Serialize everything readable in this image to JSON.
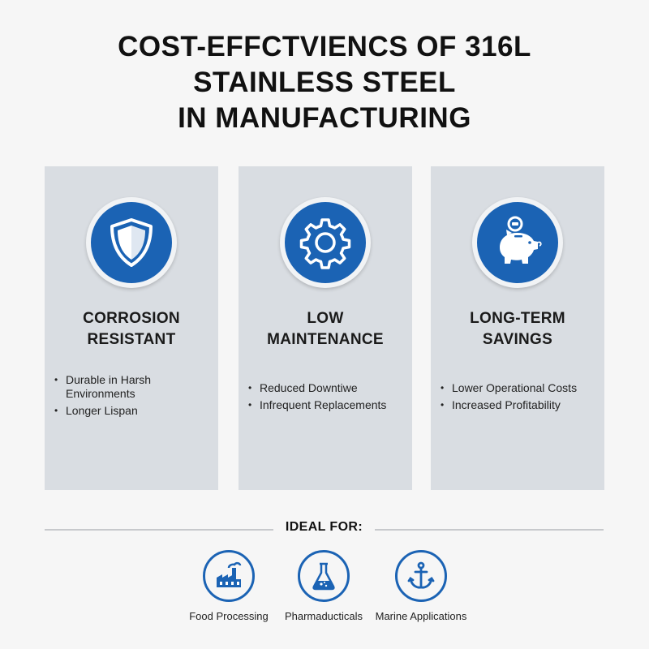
{
  "title": {
    "line1": "COST-EFFCTVIENCS OF 316L",
    "line2": "STAINLESS STEEL",
    "line3": "IN MANUFACTURING"
  },
  "cards": [
    {
      "icon": "shield-icon",
      "heading_line1": "CORROSION",
      "heading_line2": "RESISTANT",
      "bullets": [
        "Durable in Harsh Environments",
        "Longer Lispan"
      ]
    },
    {
      "icon": "gear-icon",
      "heading_line1": "LOW",
      "heading_line2": "MAINTENANCE",
      "bullets": [
        "Reduced Downtiwe",
        "Infrequent Replacements"
      ]
    },
    {
      "icon": "piggy-bank-icon",
      "heading_line1": "LONG-TERM",
      "heading_line2": "SAVINGS",
      "bullets": [
        "Lower Operational Costs",
        "Increased Profitability"
      ]
    }
  ],
  "ideal_for": {
    "label": "IDEAL FOR:",
    "items": [
      {
        "icon": "factory-icon",
        "caption": "Food Processing"
      },
      {
        "icon": "flask-icon",
        "caption": "Pharmaducticals"
      },
      {
        "icon": "anchor-icon",
        "caption": "Marine Applications"
      }
    ]
  },
  "colors": {
    "accent": "#1b63b4",
    "card_bg": "#d9dde2",
    "page_bg": "#f6f6f6"
  }
}
